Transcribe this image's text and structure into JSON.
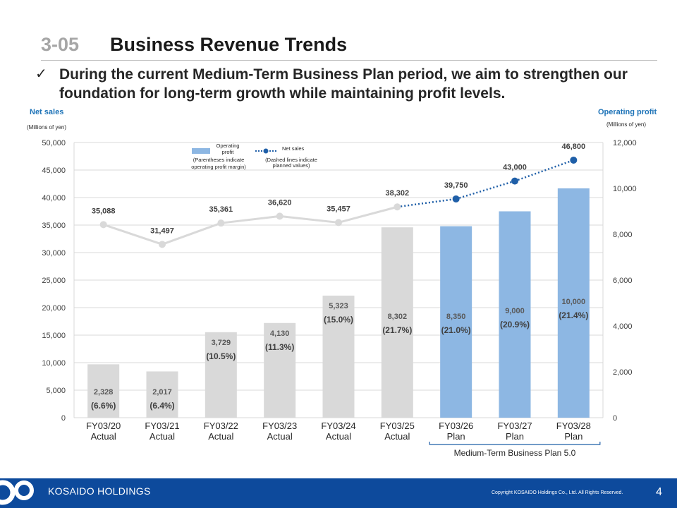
{
  "header": {
    "section_number": "3-05",
    "title": "Business Revenue Trends",
    "lead_text": "During the current Medium-Term Business Plan period, we aim to strengthen our foundation for long-term growth while maintaining profit levels."
  },
  "chart_data": {
    "type": "bar+line",
    "left_axis_title": "Net sales",
    "left_axis_unit": "(Millions of yen)",
    "right_axis_title": "Operating profit",
    "right_axis_unit": "(Millions of yen)",
    "categories": [
      [
        "FY03/20",
        "Actual"
      ],
      [
        "FY03/21",
        "Actual"
      ],
      [
        "FY03/22",
        "Actual"
      ],
      [
        "FY03/23",
        "Actual"
      ],
      [
        "FY03/24",
        "Actual"
      ],
      [
        "FY03/25",
        "Actual"
      ],
      [
        "FY03/26",
        "Plan"
      ],
      [
        "FY03/27",
        "Plan"
      ],
      [
        "FY03/28",
        "Plan"
      ]
    ],
    "y_left_ticks": [
      "0",
      "5,000",
      "10,000",
      "15,000",
      "20,000",
      "25,000",
      "30,000",
      "35,000",
      "40,000",
      "45,000",
      "50,000"
    ],
    "y_right_ticks": [
      "0",
      "2,000",
      "4,000",
      "6,000",
      "8,000",
      "10,000",
      "12,000"
    ],
    "ylim_left": [
      0,
      50000
    ],
    "ylim_right": [
      0,
      12000
    ],
    "series": [
      {
        "name": "Operating profit",
        "axis": "right",
        "kind": "bar",
        "values": [
          2328,
          2017,
          3729,
          4130,
          5323,
          8302,
          8350,
          9000,
          10000
        ],
        "value_labels": [
          "2,328",
          "2,017",
          "3,729",
          "4,130",
          "5,323",
          "8,302",
          "8,350",
          "9,000",
          "10,000"
        ],
        "margin_labels": [
          "(6.6%)",
          "(6.4%)",
          "(10.5%)",
          "(11.3%)",
          "(15.0%)",
          "(21.7%)",
          "(21.0%)",
          "(20.9%)",
          "(21.4%)"
        ],
        "planned": [
          false,
          false,
          false,
          false,
          false,
          false,
          true,
          true,
          true
        ]
      },
      {
        "name": "Net sales",
        "axis": "left",
        "kind": "line",
        "values": [
          35088,
          31497,
          35361,
          36620,
          35457,
          38302,
          39750,
          43000,
          46800
        ],
        "value_labels": [
          "35,088",
          "31,497",
          "35,361",
          "36,620",
          "35,457",
          "38,302",
          "39,750",
          "43,000",
          "46,800"
        ],
        "planned": [
          false,
          false,
          false,
          false,
          false,
          false,
          true,
          true,
          true
        ]
      }
    ],
    "legend": {
      "bar_label": [
        "Operating",
        "profit"
      ],
      "bar_note": [
        "(Parentheses indicate",
        "operating profit margin)"
      ],
      "line_label": "Net sales",
      "line_note": [
        "(Dashed lines indicate",
        "planned values)"
      ]
    },
    "bracket_label": "Medium-Term Business Plan 5.0",
    "colors": {
      "actual_bar": "#d9d9d9",
      "plan_bar": "#8db7e3",
      "actual_line": "#d9d9d9",
      "plan_line": "#1f5fa8",
      "gridline": "#d9d9d9"
    },
    "grid": true
  },
  "footer": {
    "company": "KOSAIDO HOLDINGS",
    "copyright": "Copyright KOSAIDO Holdings Co., Ltd. All Rights Reserved.",
    "page_number": "4",
    "logo_icon": "kosaido-logo-icon"
  }
}
